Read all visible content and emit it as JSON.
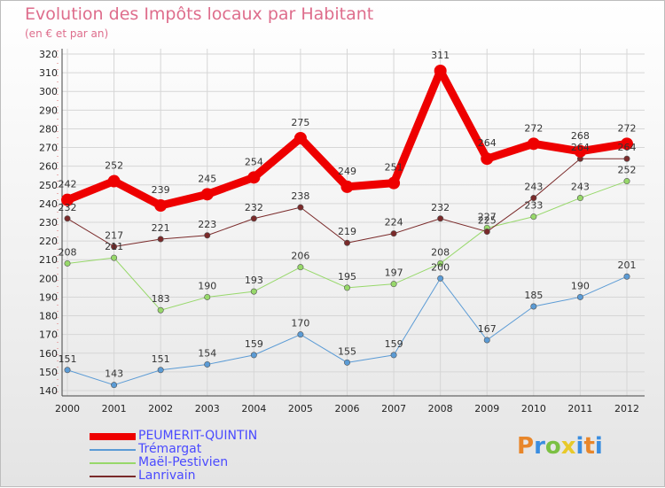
{
  "title": "Evolution des Impôts locaux par Habitant",
  "subtitle": "(en € et par an)",
  "logo": {
    "text": "Proxiti",
    "colors": [
      "#e8862a",
      "#3a8de0",
      "#7bc043",
      "#e8c92a",
      "#3a8de0",
      "#e8862a",
      "#3a8de0"
    ]
  },
  "chart_data": {
    "type": "line",
    "x": [
      "2000",
      "2001",
      "2002",
      "2003",
      "2004",
      "2005",
      "2006",
      "2007",
      "2008",
      "2009",
      "2010",
      "2011",
      "2012"
    ],
    "ylim": [
      140,
      320
    ],
    "yticks": [
      140,
      150,
      160,
      170,
      180,
      190,
      200,
      210,
      220,
      230,
      240,
      250,
      260,
      270,
      280,
      290,
      300,
      310,
      320
    ],
    "grid": true,
    "series": [
      {
        "name": "PEUMERIT-QUINTIN",
        "color": "#ee0000",
        "width": 9,
        "marker": 7,
        "values": [
          242,
          252,
          239,
          245,
          254,
          275,
          249,
          251,
          311,
          264,
          272,
          268,
          272
        ]
      },
      {
        "name": "Trémargat",
        "color": "#5b9bd5",
        "width": 1,
        "marker": 3.2,
        "values": [
          151,
          143,
          151,
          154,
          159,
          170,
          155,
          159,
          200,
          167,
          185,
          190,
          201
        ]
      },
      {
        "name": "Maël-Pestivien",
        "color": "#97d86a",
        "width": 1,
        "marker": 3.2,
        "values": [
          208,
          211,
          183,
          190,
          193,
          206,
          195,
          197,
          208,
          227,
          233,
          243,
          252
        ]
      },
      {
        "name": "Lanrivain",
        "color": "#7a2a2a",
        "width": 1,
        "marker": 3.2,
        "values": [
          232,
          217,
          221,
          223,
          232,
          238,
          219,
          224,
          232,
          225,
          243,
          264,
          264
        ]
      }
    ]
  }
}
